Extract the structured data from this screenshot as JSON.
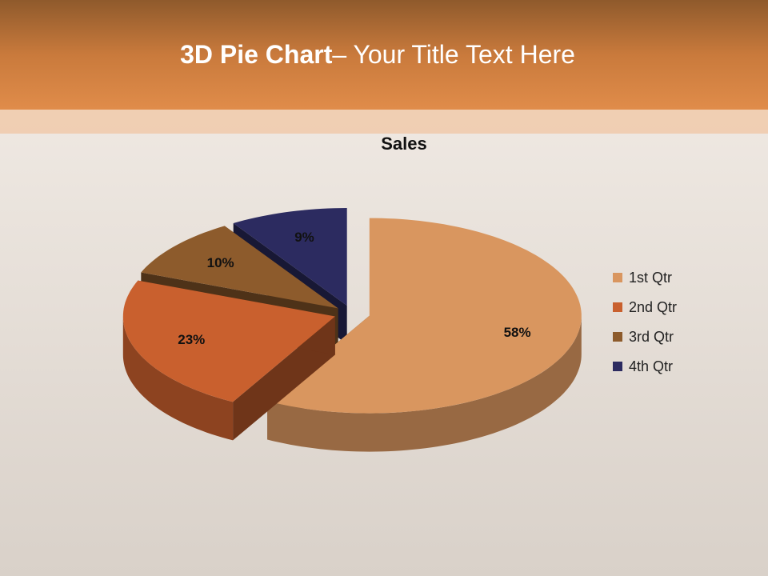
{
  "slide_title": {
    "bold": "3D Pie Chart",
    "rest": "– Your Title Text Here"
  },
  "chart_data": {
    "type": "pie",
    "title": "Sales",
    "categories": [
      "1st Qtr",
      "2nd Qtr",
      "3rd Qtr",
      "4th Qtr"
    ],
    "values": [
      58,
      23,
      10,
      9
    ],
    "value_labels": [
      "58%",
      "23%",
      "10%",
      "9%"
    ],
    "colors": [
      "#d9965f",
      "#c9602e",
      "#8d5b2c",
      "#2c2b60"
    ],
    "legend": "right"
  }
}
